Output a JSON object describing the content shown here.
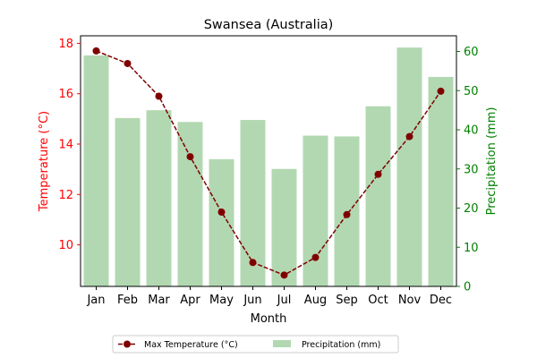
{
  "chart_data": {
    "type": "bar+line",
    "title": "Swansea (Australia)",
    "xlabel": "Month",
    "categories": [
      "Jan",
      "Feb",
      "Mar",
      "Apr",
      "May",
      "Jun",
      "Jul",
      "Aug",
      "Sep",
      "Oct",
      "Nov",
      "Dec"
    ],
    "y_left": {
      "label": "Temperature (°C)",
      "color": "#ff0000",
      "ylim": [
        8.35,
        18.3
      ],
      "ticks": [
        10,
        12,
        14,
        16,
        18
      ]
    },
    "y_right": {
      "label": "Precipitation (mm)",
      "color": "#008000",
      "ylim": [
        0,
        64
      ],
      "ticks": [
        0,
        10,
        20,
        30,
        40,
        50,
        60
      ]
    },
    "series": [
      {
        "name": "Max Temperature (°C)",
        "type": "line",
        "axis": "left",
        "color": "#800000",
        "values": [
          17.7,
          17.2,
          15.9,
          13.5,
          11.3,
          9.3,
          8.8,
          9.5,
          11.2,
          12.8,
          14.3,
          16.1
        ]
      },
      {
        "name": "Precipitation (mm)",
        "type": "bar",
        "axis": "right",
        "color": "#b2d8b2",
        "values": [
          59,
          43,
          45,
          42,
          32.5,
          42.5,
          30,
          38.5,
          38.3,
          46,
          61,
          53.5
        ]
      }
    ],
    "legend_position": "bottom-center",
    "grid": false
  }
}
